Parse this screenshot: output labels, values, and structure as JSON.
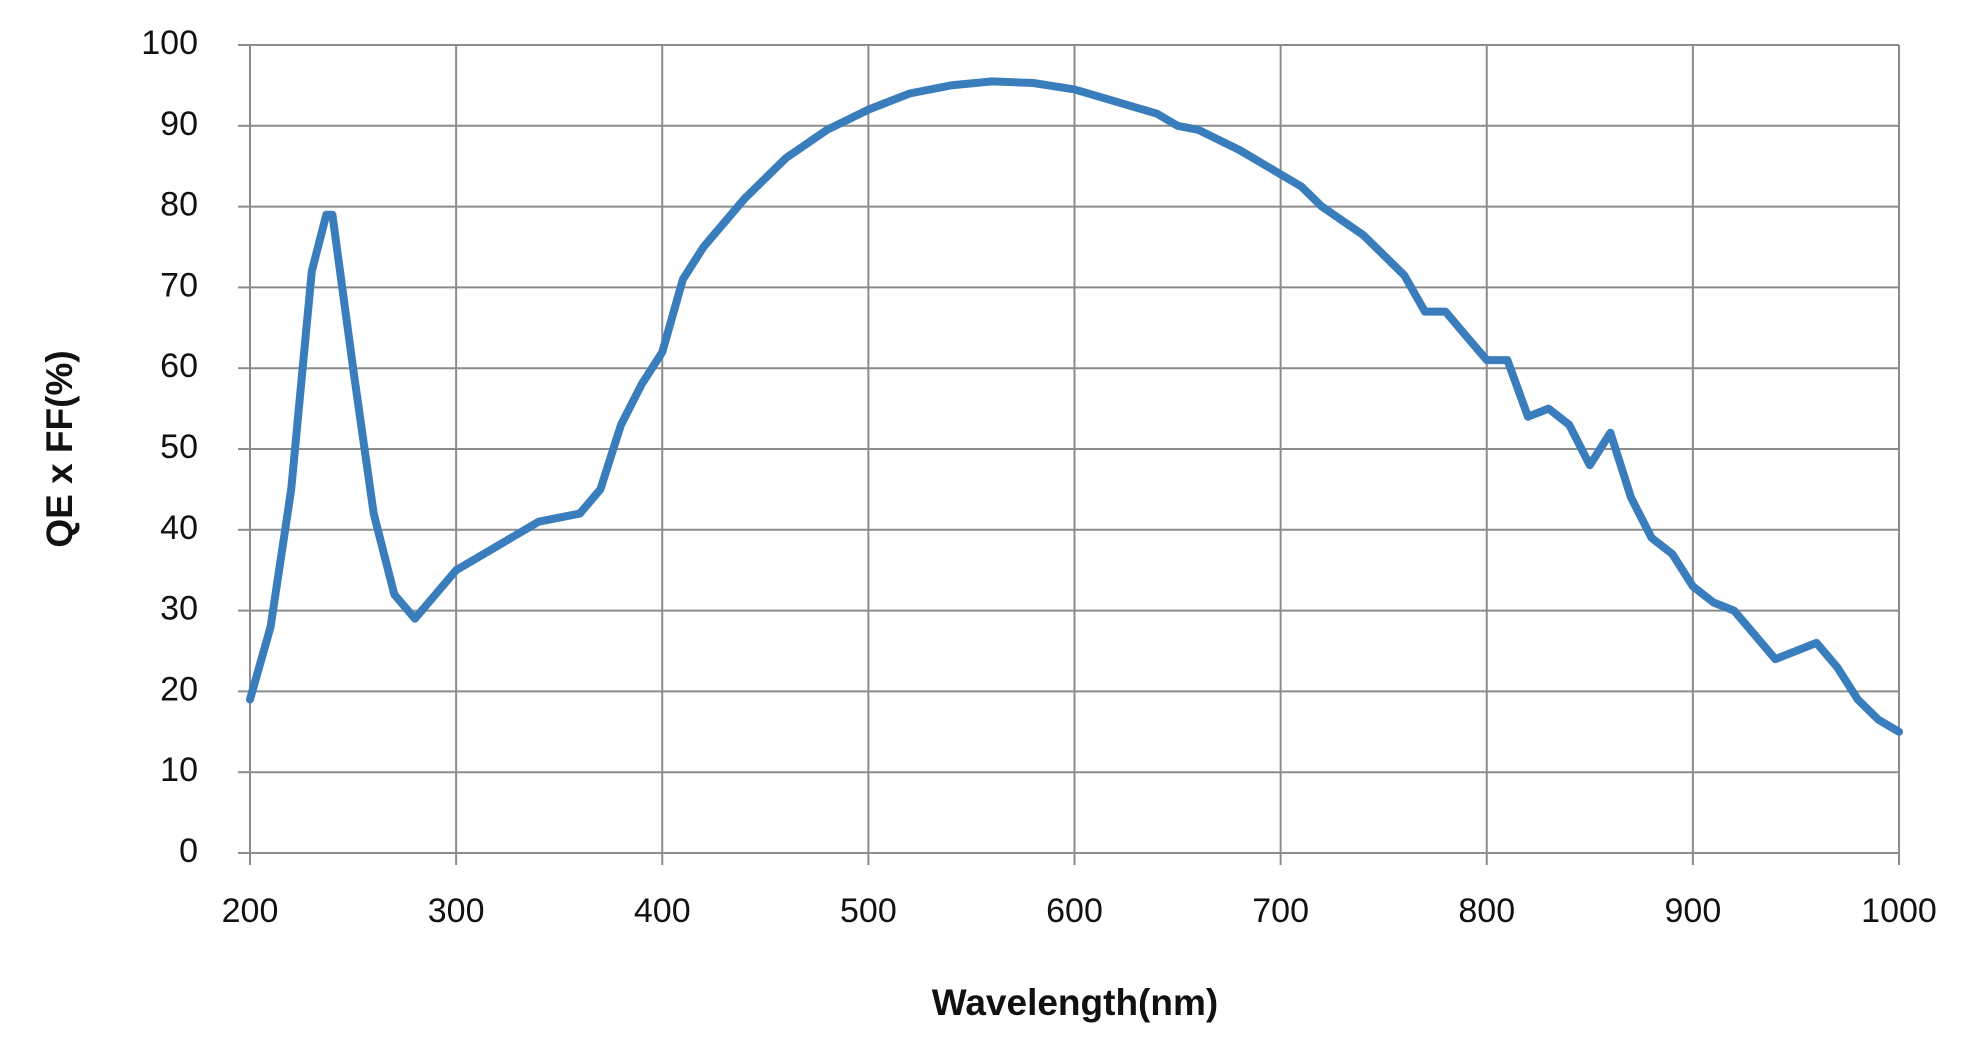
{
  "chart_data": {
    "type": "line",
    "x_label": "Wavelength(nm)",
    "y_label": "QE x FF(%)",
    "x": [
      200,
      210,
      220,
      230,
      237,
      240,
      250,
      260,
      270,
      280,
      290,
      300,
      320,
      340,
      360,
      370,
      380,
      390,
      400,
      410,
      420,
      440,
      460,
      480,
      500,
      520,
      540,
      560,
      580,
      600,
      620,
      640,
      650,
      660,
      680,
      700,
      710,
      720,
      740,
      760,
      770,
      780,
      790,
      800,
      810,
      820,
      830,
      840,
      850,
      860,
      870,
      880,
      890,
      900,
      910,
      920,
      940,
      960,
      970,
      980,
      990,
      1000
    ],
    "series": [
      {
        "name": "QE x FF",
        "color": "#3a7dbd",
        "values": [
          19,
          28,
          45,
          72,
          79,
          79,
          60,
          42,
          32,
          29,
          32,
          35,
          38,
          41,
          42,
          45,
          53,
          58,
          62,
          71,
          75,
          81,
          86,
          89.5,
          92,
          94,
          95,
          95.5,
          95.3,
          94.5,
          93,
          91.5,
          90,
          89.5,
          87,
          84,
          82.5,
          80,
          76.5,
          71.5,
          67,
          67,
          64,
          61,
          61,
          54,
          55,
          53,
          48,
          52,
          44,
          39,
          37,
          33,
          31,
          30,
          24,
          26,
          23,
          19,
          16.5,
          15
        ]
      }
    ],
    "xlim": [
      200,
      1000
    ],
    "xticks": [
      200,
      300,
      400,
      500,
      600,
      700,
      800,
      900,
      1000
    ],
    "ylim": [
      0,
      100
    ],
    "yticks": [
      0,
      10,
      20,
      30,
      40,
      50,
      60,
      70,
      80,
      90,
      100
    ],
    "grid": true
  }
}
